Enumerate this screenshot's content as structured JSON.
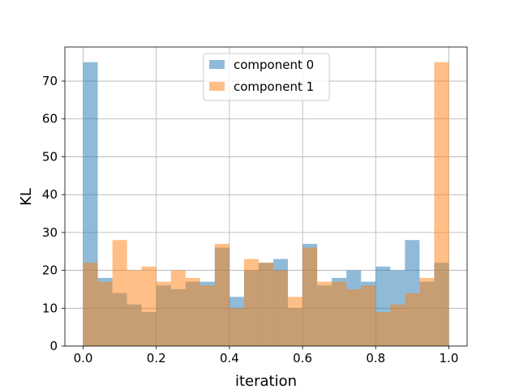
{
  "chart_data": {
    "type": "bar",
    "subtype": "overlapping-histogram",
    "xlabel": "iteration",
    "ylabel": "KL",
    "xlim": [
      -0.05,
      1.05
    ],
    "ylim": [
      0,
      79
    ],
    "xticks": [
      "0.0",
      "0.2",
      "0.4",
      "0.6",
      "0.8",
      "1.0"
    ],
    "yticks": [
      "0",
      "10",
      "20",
      "30",
      "40",
      "50",
      "60",
      "70"
    ],
    "grid": true,
    "legend_position": "upper center",
    "bin_edges": [
      0.0,
      0.04,
      0.08,
      0.12,
      0.16,
      0.2,
      0.24,
      0.28,
      0.32,
      0.36,
      0.4,
      0.44,
      0.48,
      0.52,
      0.56,
      0.6,
      0.64,
      0.68,
      0.72,
      0.76,
      0.8,
      0.84,
      0.88,
      0.92,
      0.96,
      1.0
    ],
    "series": [
      {
        "name": "component 0",
        "color": "#1f77b4",
        "opacity": 0.5,
        "values": [
          75,
          18,
          14,
          11,
          9,
          16,
          15,
          17,
          17,
          26,
          13,
          20,
          22,
          23,
          10,
          27,
          16,
          18,
          20,
          17,
          21,
          20,
          28,
          17,
          22
        ]
      },
      {
        "name": "component 1",
        "color": "#ff7f0e",
        "opacity": 0.5,
        "values": [
          22,
          17,
          28,
          20,
          21,
          17,
          20,
          18,
          16,
          27,
          10,
          23,
          22,
          20,
          13,
          26,
          17,
          17,
          15,
          16,
          9,
          11,
          14,
          18,
          75
        ]
      }
    ]
  }
}
